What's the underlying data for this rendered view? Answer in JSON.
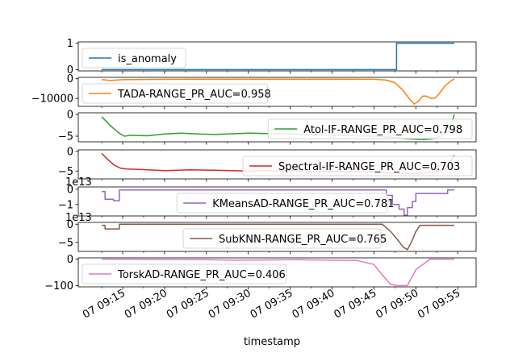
{
  "chart_data": {
    "type": "line",
    "xlabel": "timestamp",
    "x_ticks": [
      "07 09:15",
      "07 09:20",
      "07 09:25",
      "07 09:30",
      "07 09:35",
      "07 09:40",
      "07 09:45",
      "07 09:50",
      "07 09:55"
    ],
    "x_range_minutes": [
      9.7,
      57.2
    ],
    "panels": [
      {
        "name": "is_anomaly",
        "color": "#1f77b4",
        "legend": "is_anomaly",
        "legend_loc": "lower-left",
        "ylim": [
          -0.05,
          1.05
        ],
        "yticks": [
          0,
          1
        ],
        "ytick_labels": [
          "0",
          "1"
        ],
        "offset_text": "",
        "x": [
          12.5,
          47.7,
          47.7,
          54.6
        ],
        "y": [
          0,
          0,
          1,
          1
        ]
      },
      {
        "name": "tada",
        "color": "#ff7f0e",
        "legend": "TADA-RANGE_PR_AUC=0.958",
        "legend_loc": "lower-left",
        "ylim": [
          -14000,
          700
        ],
        "yticks": [
          0,
          -10000
        ],
        "ytick_labels": [
          "0",
          "−10000"
        ],
        "offset_text": "",
        "x": [
          12.5,
          13.5,
          15,
          20,
          30,
          40,
          45,
          46.5,
          47.5,
          48.5,
          49.3,
          49.8,
          50.3,
          50.8,
          51.3,
          51.8,
          52.3,
          52.8,
          53.5,
          54.3,
          54.6
        ],
        "y": [
          -400,
          -900,
          -500,
          -300,
          -200,
          -200,
          -300,
          -700,
          -2000,
          -6000,
          -10500,
          -12800,
          -11500,
          -8800,
          -8800,
          -10000,
          -9800,
          -7500,
          -3500,
          -800,
          -200
        ]
      },
      {
        "name": "atol-if",
        "color": "#2ca02c",
        "legend": "Atol-IF-RANGE_PR_AUC=0.798",
        "legend_loc": "lower-right",
        "ylim": [
          -6.3,
          0.4
        ],
        "yticks": [
          0,
          -5
        ],
        "ytick_labels": [
          "0",
          "−5"
        ],
        "offset_text": "",
        "x": [
          12.5,
          13.5,
          14.5,
          15.2,
          16,
          18,
          20,
          22,
          24,
          26,
          30,
          35,
          40,
          45,
          47,
          49,
          51,
          52,
          53,
          54,
          54.6
        ],
        "y": [
          -0.5,
          -2.5,
          -4.2,
          -5.0,
          -4.8,
          -4.9,
          -4.5,
          -4.3,
          -4.5,
          -4.6,
          -4.3,
          -4.5,
          -4.8,
          -5.0,
          -5.2,
          -5.6,
          -5.8,
          -5.6,
          -5.0,
          -3.5,
          0
        ]
      },
      {
        "name": "spectral-if",
        "color": "#d62728",
        "legend": "Spectral-IF-RANGE_PR_AUC=0.703",
        "legend_loc": "lower-right",
        "ylim": [
          -7.0,
          0.4
        ],
        "yticks": [
          0,
          -5
        ],
        "ytick_labels": [
          "0",
          "−5"
        ],
        "offset_text": "",
        "x": [
          12.5,
          13.2,
          14,
          14.8,
          15.5,
          17,
          20,
          23,
          26,
          30,
          35,
          40,
          45,
          47,
          50,
          52,
          53.5,
          54.6
        ],
        "y": [
          -0.5,
          -2.0,
          -3.5,
          -4.3,
          -4.5,
          -4.6,
          -4.9,
          -4.7,
          -4.8,
          -5.0,
          -4.9,
          -5.1,
          -5.2,
          -5.5,
          -5.7,
          -5.3,
          -4.5,
          -1.0
        ]
      },
      {
        "name": "kmeansad",
        "color": "#9467bd",
        "legend": "KMeansAD-RANGE_PR_AUC=0.781",
        "legend_loc": "lower-center",
        "ylim": [
          -1.75,
          0.15
        ],
        "yticks": [
          0,
          -1
        ],
        "ytick_labels": [
          "0",
          "−1"
        ],
        "offset_text": "1e13",
        "x": [
          12.5,
          12.9,
          12.9,
          13.9,
          13.9,
          14.6,
          14.6,
          46.5,
          46.5,
          47.2,
          47.2,
          48.0,
          48.0,
          48.6,
          48.6,
          49.0,
          49.0,
          49.6,
          49.6,
          50.0,
          50.0,
          53.8,
          53.8,
          54.6
        ],
        "y": [
          -0.15,
          -0.15,
          -0.65,
          -0.65,
          -0.75,
          -0.75,
          -0.05,
          -0.05,
          -0.4,
          -0.4,
          -1.0,
          -1.0,
          -1.3,
          -1.3,
          -1.7,
          -1.7,
          -1.2,
          -1.2,
          -0.8,
          -0.8,
          -0.28,
          -0.28,
          -0.05,
          -0.05
        ]
      },
      {
        "name": "subknn",
        "color": "#8c564b",
        "legend": "SubKNN-RANGE_PR_AUC=0.765",
        "legend_loc": "lower-center",
        "ylim": [
          -7.5,
          0.5
        ],
        "yticks": [
          0,
          -5
        ],
        "ytick_labels": [
          "0",
          "−5"
        ],
        "offset_text": "1e13",
        "x": [
          12.5,
          12.9,
          12.9,
          14.6,
          14.6,
          46.0,
          47.0,
          48.0,
          48.5,
          49.0,
          49.5,
          50.0,
          50.5,
          54.6
        ],
        "y": [
          -0.3,
          -0.3,
          -1.3,
          -1.3,
          0,
          0,
          -2.0,
          -4.8,
          -6.3,
          -7.0,
          -4.8,
          -2.0,
          -0.3,
          -0.3
        ]
      },
      {
        "name": "torskad",
        "color": "#e377c2",
        "legend": "TorskAD-RANGE_PR_AUC=0.406",
        "legend_loc": "lower-left",
        "ylim": [
          -105,
          5
        ],
        "yticks": [
          0,
          -100
        ],
        "ytick_labels": [
          "0",
          "−100"
        ],
        "offset_text": "",
        "x": [
          12.5,
          20,
          25,
          28,
          32,
          36,
          40,
          43,
          45,
          46,
          47,
          47.8,
          49,
          50,
          51.7,
          54.6
        ],
        "y": [
          0,
          -1,
          -2,
          -4,
          -3,
          -2,
          -4,
          -5,
          -20,
          -60,
          -96,
          -100,
          -100,
          -40,
          0,
          0
        ]
      }
    ]
  }
}
